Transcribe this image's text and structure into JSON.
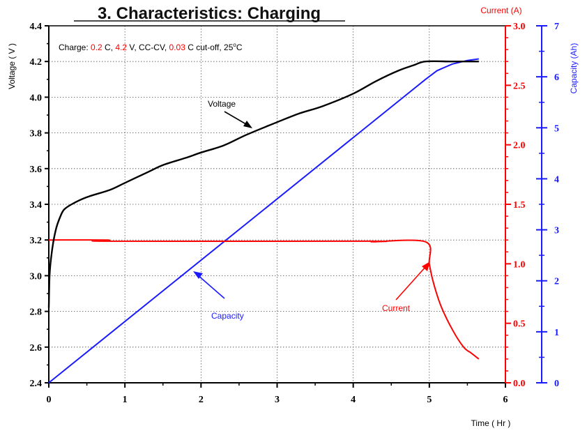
{
  "chart_data": {
    "type": "line",
    "title": "3. Characteristics: Charging",
    "condition": {
      "prefix": "Charge: ",
      "rate": "0.2",
      "rate_unit": " C, ",
      "voltage": "4.2",
      "voltage_unit": " V, CC-CV, ",
      "cutoff": "0.03",
      "cutoff_unit": " C cut-off, 25",
      "temp_unit": "C"
    },
    "xlabel": "Time  ( Hr )",
    "ylabel_left": "Voltage  ( V )",
    "ylabel_right_current": "Current  (A)",
    "ylabel_right_capacity": "Capacity (Ah)",
    "xlim": [
      0,
      6
    ],
    "ylim_voltage": [
      2.4,
      4.4
    ],
    "ylim_current": [
      0.0,
      3.0
    ],
    "ylim_capacity": [
      0,
      7
    ],
    "x_ticks": [
      "0",
      "1",
      "2",
      "3",
      "4",
      "5",
      "6"
    ],
    "voltage_ticks": [
      "2.4",
      "2.6",
      "2.8",
      "3.0",
      "3.2",
      "3.4",
      "3.6",
      "3.8",
      "4.0",
      "4.2",
      "4.4"
    ],
    "current_ticks": [
      "0.0",
      "0.5",
      "1.0",
      "1.5",
      "2.0",
      "2.5",
      "3.0"
    ],
    "capacity_ticks": [
      "0",
      "1",
      "2",
      "3",
      "4",
      "5",
      "6",
      "7"
    ],
    "grid": true,
    "colors": {
      "voltage": "#000000",
      "current": "#ff0000",
      "capacity": "#1a1aff"
    },
    "series": [
      {
        "name": "Voltage",
        "axis": "voltage",
        "x": [
          0,
          0.01,
          0.03,
          0.06,
          0.1,
          0.15,
          0.2,
          0.3,
          0.5,
          0.8,
          1.0,
          1.3,
          1.5,
          1.8,
          2.0,
          2.3,
          2.6,
          3.0,
          3.3,
          3.6,
          4.0,
          4.3,
          4.6,
          4.8,
          4.95,
          5.3,
          5.65
        ],
        "y": [
          2.82,
          3.0,
          3.1,
          3.19,
          3.27,
          3.33,
          3.37,
          3.4,
          3.44,
          3.48,
          3.52,
          3.58,
          3.62,
          3.66,
          3.69,
          3.73,
          3.79,
          3.86,
          3.91,
          3.95,
          4.02,
          4.09,
          4.15,
          4.18,
          4.2,
          4.2,
          4.2
        ]
      },
      {
        "name": "Current",
        "axis": "current",
        "x": [
          0,
          0.78,
          0.8,
          4.2,
          4.25,
          4.95,
          5.0,
          5.05,
          5.15,
          5.3,
          5.45,
          5.55,
          5.65
        ],
        "y": [
          1.2,
          1.2,
          1.19,
          1.19,
          1.185,
          1.185,
          1.0,
          0.85,
          0.65,
          0.45,
          0.3,
          0.25,
          0.2
        ]
      },
      {
        "name": "Capacity",
        "axis": "capacity",
        "x": [
          0,
          4.95,
          5.1,
          5.3,
          5.5,
          5.65
        ],
        "y": [
          0,
          5.95,
          6.12,
          6.25,
          6.32,
          6.35
        ]
      }
    ],
    "annotations": [
      {
        "text": "Voltage",
        "target": "voltage"
      },
      {
        "text": "Capacity",
        "target": "capacity"
      },
      {
        "text": "Current",
        "target": "current"
      }
    ]
  }
}
